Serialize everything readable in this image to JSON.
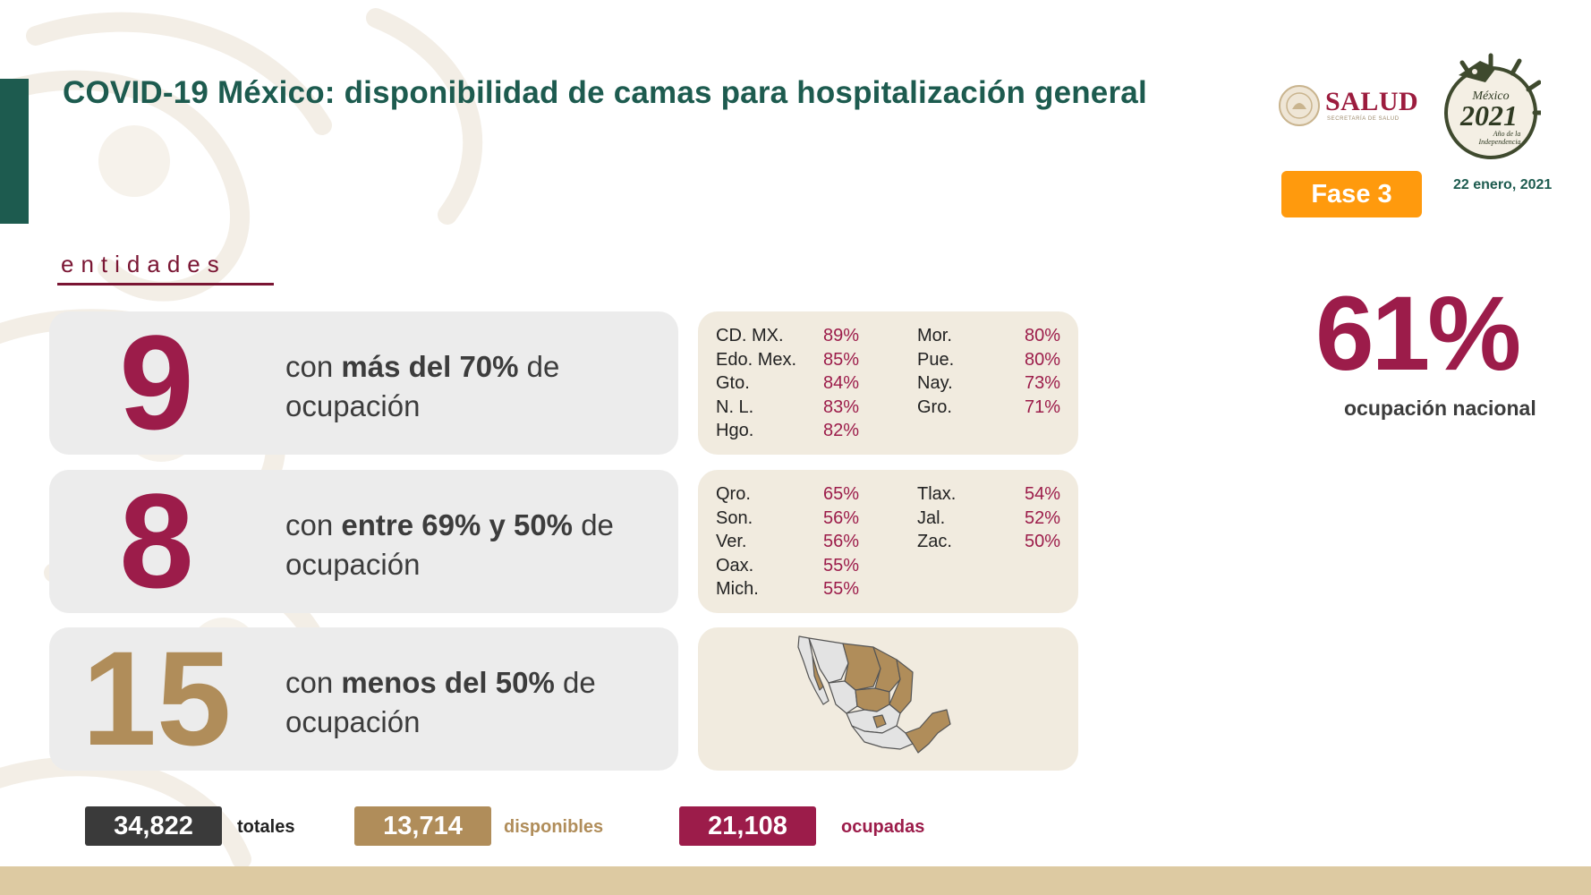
{
  "title": "COVID-19 México: disponibilidad de camas para hospitalización general",
  "logos": {
    "salud": "SALUD",
    "salud_sub": "SECRETARÍA DE SALUD",
    "anniv_line1": "México",
    "anniv_year": "2021",
    "anniv_line2": "Año de la",
    "anniv_line3": "Independencia"
  },
  "phase": "Fase 3",
  "date": "22 enero, 2021",
  "section_label": "entidades",
  "national": {
    "value": "61%",
    "label": "ocupación nacional"
  },
  "rows": [
    {
      "count": "9",
      "desc_pre": "con ",
      "desc_bold": "más del 70%",
      "desc_post": " de ocupación",
      "color": "#9c1c4a",
      "col1": [
        {
          "name": "CD. MX.",
          "pct": "89%"
        },
        {
          "name": "Edo. Mex.",
          "pct": "85%"
        },
        {
          "name": "Gto.",
          "pct": "84%"
        },
        {
          "name": "N. L.",
          "pct": "83%"
        },
        {
          "name": "Hgo.",
          "pct": "82%"
        }
      ],
      "col2": [
        {
          "name": "Mor.",
          "pct": "80%"
        },
        {
          "name": "Pue.",
          "pct": "80%"
        },
        {
          "name": "Nay.",
          "pct": "73%"
        },
        {
          "name": "Gro.",
          "pct": "71%"
        }
      ]
    },
    {
      "count": "8",
      "desc_pre": "con ",
      "desc_bold": "entre 69% y 50%",
      "desc_post": " de ocupación",
      "color": "#9c1c4a",
      "col1": [
        {
          "name": "Qro.",
          "pct": "65%"
        },
        {
          "name": "Son.",
          "pct": "56%"
        },
        {
          "name": "Ver.",
          "pct": "56%"
        },
        {
          "name": "Oax.",
          "pct": "55%"
        },
        {
          "name": "Mich.",
          "pct": "55%"
        }
      ],
      "col2": [
        {
          "name": "Tlax.",
          "pct": "54%"
        },
        {
          "name": "Jal.",
          "pct": "52%"
        },
        {
          "name": "Zac.",
          "pct": "50%"
        }
      ]
    },
    {
      "count": "15",
      "desc_pre": "con ",
      "desc_bold": "menos del 50%",
      "desc_post": " de ocupación",
      "color": "#b08d5a"
    }
  ],
  "totals": [
    {
      "value": "34,822",
      "label": "totales",
      "box_color": "#3a3a3a",
      "label_color": "#222222"
    },
    {
      "value": "13,714",
      "label": "disponibles",
      "box_color": "#b08d5a",
      "label_color": "#b08d5a"
    },
    {
      "value": "21,108",
      "label": "ocupadas",
      "box_color": "#9c1c4a",
      "label_color": "#9c1c4a"
    }
  ],
  "colors": {
    "green": "#1d5b4f",
    "wine": "#9c1c4a",
    "gold": "#b08d5a",
    "orange": "#ff9a0d"
  }
}
